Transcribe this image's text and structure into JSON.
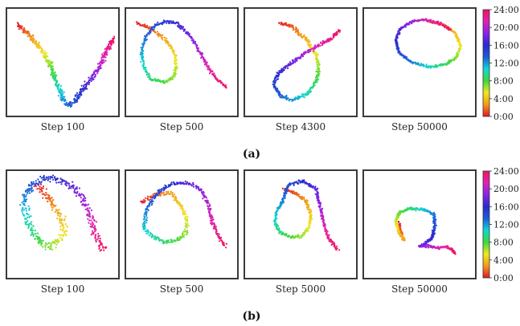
{
  "figure": {
    "rows": [
      {
        "label": "(a)",
        "panels": [
          {
            "step_label": "Step 100"
          },
          {
            "step_label": "Step 500"
          },
          {
            "step_label": "Step 4300"
          },
          {
            "step_label": "Step 50000"
          }
        ]
      },
      {
        "label": "(b)",
        "panels": [
          {
            "step_label": "Step 100"
          },
          {
            "step_label": "Step 500"
          },
          {
            "step_label": "Step 5000"
          },
          {
            "step_label": "Step 50000"
          }
        ]
      }
    ],
    "colorbar": {
      "ticks": [
        "0:00",
        "4:00",
        "8:00",
        "12:00",
        "16:00",
        "20:00",
        "24:00"
      ],
      "tick_values": [
        0,
        4,
        8,
        12,
        16,
        20,
        24
      ],
      "colormap_stops": [
        "#e4152b",
        "#f39a16",
        "#f0e820",
        "#3cd93c",
        "#10d6d6",
        "#1e5bd8",
        "#2a2ad0",
        "#8a22e6",
        "#e022b4",
        "#f0145e"
      ]
    }
  },
  "chart_data": {
    "type": "scatter",
    "color_variable_range": [
      0,
      24
    ],
    "panels": [
      {
        "row": "(a)",
        "title": "Step 100",
        "curve": [
          [
            0.06,
            0.88
          ],
          [
            0.15,
            0.8
          ],
          [
            0.24,
            0.7
          ],
          [
            0.3,
            0.61
          ],
          [
            0.37,
            0.5
          ],
          [
            0.41,
            0.38
          ],
          [
            0.45,
            0.27
          ],
          [
            0.5,
            0.14
          ],
          [
            0.55,
            0.06
          ],
          [
            0.63,
            0.12
          ],
          [
            0.72,
            0.26
          ],
          [
            0.8,
            0.36
          ],
          [
            0.86,
            0.46
          ],
          [
            0.9,
            0.56
          ],
          [
            0.95,
            0.66
          ],
          [
            1.0,
            0.74
          ]
        ],
        "spread": 0.035
      },
      {
        "row": "(a)",
        "title": "Step 500",
        "curve": [
          [
            0.06,
            0.9
          ],
          [
            0.2,
            0.84
          ],
          [
            0.34,
            0.73
          ],
          [
            0.43,
            0.6
          ],
          [
            0.45,
            0.46
          ],
          [
            0.42,
            0.35
          ],
          [
            0.33,
            0.3
          ],
          [
            0.2,
            0.33
          ],
          [
            0.13,
            0.46
          ],
          [
            0.11,
            0.6
          ],
          [
            0.15,
            0.76
          ],
          [
            0.25,
            0.88
          ],
          [
            0.35,
            0.91
          ],
          [
            0.45,
            0.9
          ],
          [
            0.6,
            0.75
          ],
          [
            0.75,
            0.46
          ],
          [
            0.85,
            0.32
          ],
          [
            0.94,
            0.24
          ]
        ],
        "spread": 0.022
      },
      {
        "row": "(a)",
        "title": "Step 4300",
        "curve": [
          [
            0.3,
            0.9
          ],
          [
            0.42,
            0.86
          ],
          [
            0.55,
            0.74
          ],
          [
            0.65,
            0.58
          ],
          [
            0.68,
            0.45
          ],
          [
            0.66,
            0.32
          ],
          [
            0.57,
            0.18
          ],
          [
            0.42,
            0.12
          ],
          [
            0.3,
            0.16
          ],
          [
            0.24,
            0.27
          ],
          [
            0.28,
            0.38
          ],
          [
            0.38,
            0.47
          ],
          [
            0.52,
            0.57
          ],
          [
            0.66,
            0.66
          ],
          [
            0.8,
            0.74
          ],
          [
            0.87,
            0.82
          ]
        ],
        "spread": 0.025
      },
      {
        "row": "(a)",
        "title": "Step 50000",
        "curve": [
          [
            0.58,
            0.92
          ],
          [
            0.74,
            0.88
          ],
          [
            0.85,
            0.79
          ],
          [
            0.9,
            0.67
          ],
          [
            0.86,
            0.55
          ],
          [
            0.76,
            0.48
          ],
          [
            0.6,
            0.45
          ],
          [
            0.42,
            0.5
          ],
          [
            0.3,
            0.6
          ],
          [
            0.27,
            0.72
          ],
          [
            0.31,
            0.84
          ],
          [
            0.44,
            0.92
          ],
          [
            0.58,
            0.93
          ],
          [
            0.7,
            0.89
          ],
          [
            0.8,
            0.83
          ]
        ],
        "spread": 0.018
      },
      {
        "row": "(b)",
        "title": "Step 100",
        "curve": [
          [
            0.25,
            0.9
          ],
          [
            0.33,
            0.8
          ],
          [
            0.42,
            0.68
          ],
          [
            0.48,
            0.56
          ],
          [
            0.52,
            0.44
          ],
          [
            0.46,
            0.33
          ],
          [
            0.38,
            0.27
          ],
          [
            0.3,
            0.3
          ],
          [
            0.22,
            0.41
          ],
          [
            0.15,
            0.56
          ],
          [
            0.12,
            0.7
          ],
          [
            0.16,
            0.84
          ],
          [
            0.28,
            0.95
          ],
          [
            0.42,
            0.97
          ],
          [
            0.55,
            0.92
          ],
          [
            0.68,
            0.79
          ],
          [
            0.76,
            0.62
          ],
          [
            0.8,
            0.47
          ],
          [
            0.84,
            0.34
          ],
          [
            0.9,
            0.24
          ]
        ],
        "spread": 0.055
      },
      {
        "row": "(b)",
        "title": "Step 500",
        "curve": [
          [
            0.1,
            0.72
          ],
          [
            0.25,
            0.8
          ],
          [
            0.4,
            0.82
          ],
          [
            0.5,
            0.68
          ],
          [
            0.55,
            0.55
          ],
          [
            0.55,
            0.43
          ],
          [
            0.47,
            0.35
          ],
          [
            0.35,
            0.32
          ],
          [
            0.22,
            0.37
          ],
          [
            0.14,
            0.47
          ],
          [
            0.15,
            0.61
          ],
          [
            0.2,
            0.72
          ],
          [
            0.28,
            0.84
          ],
          [
            0.4,
            0.91
          ],
          [
            0.55,
            0.92
          ],
          [
            0.68,
            0.86
          ],
          [
            0.76,
            0.7
          ],
          [
            0.8,
            0.52
          ],
          [
            0.86,
            0.38
          ],
          [
            0.92,
            0.28
          ]
        ],
        "spread": 0.028
      },
      {
        "row": "(b)",
        "title": "Step 5000",
        "curve": [
          [
            0.33,
            0.86
          ],
          [
            0.45,
            0.82
          ],
          [
            0.55,
            0.74
          ],
          [
            0.6,
            0.6
          ],
          [
            0.58,
            0.46
          ],
          [
            0.5,
            0.38
          ],
          [
            0.4,
            0.37
          ],
          [
            0.3,
            0.42
          ],
          [
            0.25,
            0.52
          ],
          [
            0.27,
            0.64
          ],
          [
            0.33,
            0.74
          ],
          [
            0.38,
            0.9
          ],
          [
            0.52,
            0.94
          ],
          [
            0.65,
            0.86
          ],
          [
            0.7,
            0.64
          ],
          [
            0.73,
            0.48
          ],
          [
            0.78,
            0.35
          ],
          [
            0.86,
            0.25
          ]
        ],
        "spread": 0.022
      },
      {
        "row": "(b)",
        "title": "Step 50000",
        "curve": [
          [
            0.3,
            0.52
          ],
          [
            0.32,
            0.42
          ],
          [
            0.35,
            0.34
          ],
          [
            0.3,
            0.42
          ],
          [
            0.27,
            0.52
          ],
          [
            0.3,
            0.62
          ],
          [
            0.4,
            0.66
          ],
          [
            0.55,
            0.65
          ],
          [
            0.64,
            0.6
          ],
          [
            0.65,
            0.48
          ],
          [
            0.62,
            0.36
          ],
          [
            0.55,
            0.3
          ],
          [
            0.5,
            0.28
          ],
          [
            0.58,
            0.28
          ],
          [
            0.68,
            0.26
          ],
          [
            0.76,
            0.28
          ],
          [
            0.82,
            0.24
          ],
          [
            0.85,
            0.2
          ]
        ],
        "spread": 0.018
      }
    ]
  }
}
